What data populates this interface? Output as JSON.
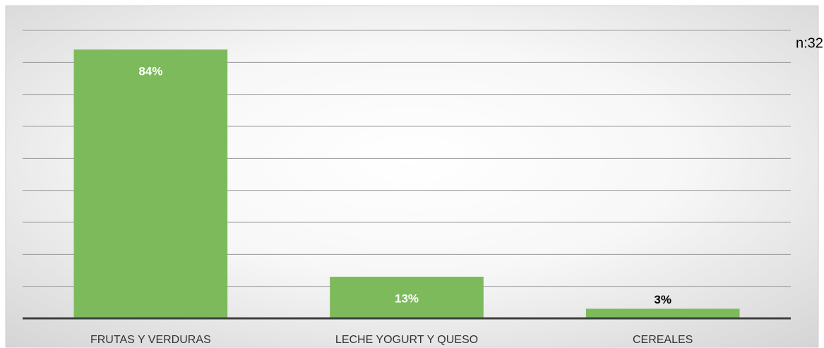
{
  "chart_data": {
    "type": "bar",
    "annotation": "n:32",
    "categories": [
      "FRUTAS Y VERDURAS",
      "LECHE YOGURT Y QUESO",
      "CEREALES"
    ],
    "values": [
      84,
      13,
      3
    ],
    "value_labels": [
      "84%",
      "13%",
      "3%"
    ],
    "color": "#7dba5c",
    "ylim": [
      0,
      90
    ],
    "yticks": [
      0,
      10,
      20,
      30,
      40,
      50,
      60,
      70,
      80,
      90
    ],
    "grid": true
  }
}
